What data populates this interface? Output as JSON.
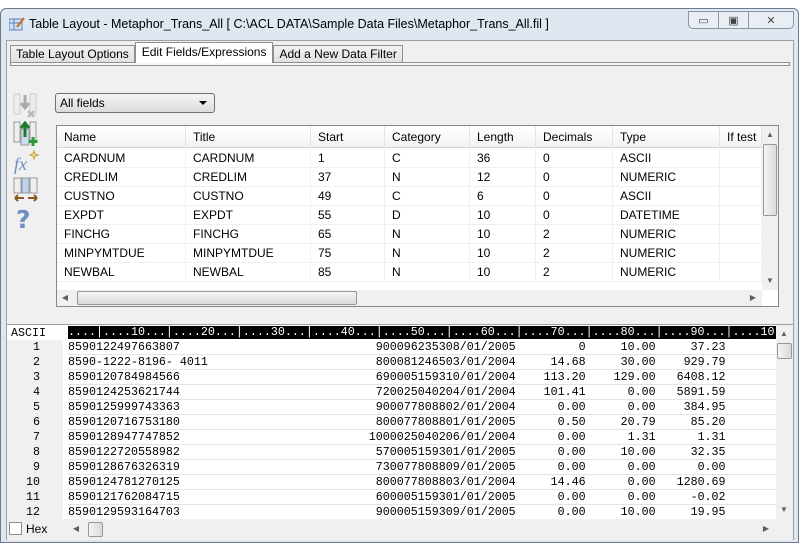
{
  "window": {
    "title": "Table Layout - Metaphor_Trans_All [ C:\\ACL DATA\\Sample Data Files\\Metaphor_Trans_All.fil ]",
    "minimize_glyph": "▭",
    "maximize_glyph": "▣",
    "close_glyph": "✕"
  },
  "tabs": [
    {
      "label": "Table Layout Options",
      "active": false
    },
    {
      "label": "Edit Fields/Expressions",
      "active": true
    },
    {
      "label": "Add a New Data Filter",
      "active": false
    }
  ],
  "toolbar": {
    "icons": [
      "delete-field-icon",
      "add-field-icon",
      "add-expression-icon",
      "resize-columns-icon",
      "help-icon"
    ]
  },
  "filter_select": {
    "value": "All fields"
  },
  "fields_grid": {
    "columns": [
      "Name",
      "Title",
      "Start",
      "Category",
      "Length",
      "Decimals",
      "Type",
      "If test"
    ],
    "rows": [
      [
        "CARDNUM",
        "CARDNUM",
        "1",
        "C",
        "36",
        "0",
        "ASCII",
        ""
      ],
      [
        "CREDLIM",
        "CREDLIM",
        "37",
        "N",
        "12",
        "0",
        "NUMERIC",
        ""
      ],
      [
        "CUSTNO",
        "CUSTNO",
        "49",
        "C",
        "6",
        "0",
        "ASCII",
        ""
      ],
      [
        "EXPDT",
        "EXPDT",
        "55",
        "D",
        "10",
        "0",
        "DATETIME",
        ""
      ],
      [
        "FINCHG",
        "FINCHG",
        "65",
        "N",
        "10",
        "2",
        "NUMERIC",
        ""
      ],
      [
        "MINPYMTDUE",
        "MINPYMTDUE",
        "75",
        "N",
        "10",
        "2",
        "NUMERIC",
        ""
      ],
      [
        "NEWBAL",
        "NEWBAL",
        "85",
        "N",
        "10",
        "2",
        "NUMERIC",
        ""
      ]
    ]
  },
  "data_view": {
    "encoding_label": "ASCII",
    "ruler": "....|....10...|....20...|....30...|....40...|....50...|....60...|....70...|....80...|....90...|....10",
    "records": [
      {
        "n": "1",
        "card": "8590122497663807",
        "mid": "900096235308/01/2005",
        "v1": "0",
        "v2": "10.00",
        "v3": "37.23"
      },
      {
        "n": "2",
        "card": "8590-1222-8196- 4011",
        "mid": "800081246503/01/2004",
        "v1": "14.68",
        "v2": "30.00",
        "v3": "929.79"
      },
      {
        "n": "3",
        "card": "8590120784984566",
        "mid": "690005159310/01/2004",
        "v1": "113.20",
        "v2": "129.00",
        "v3": "6408.12"
      },
      {
        "n": "4",
        "card": "8590124253621744",
        "mid": "720025040204/01/2004",
        "v1": "101.41",
        "v2": "0.00",
        "v3": "5891.59"
      },
      {
        "n": "5",
        "card": "8590125999743363",
        "mid": "900077808802/01/2004",
        "v1": "0.00",
        "v2": "0.00",
        "v3": "384.95"
      },
      {
        "n": "6",
        "card": "8590120716753180",
        "mid": "800077808801/01/2005",
        "v1": "0.50",
        "v2": "20.79",
        "v3": "85.20"
      },
      {
        "n": "7",
        "card": "8590128947747852",
        "mid": "1000025040206/01/2004",
        "v1": "0.00",
        "v2": "1.31",
        "v3": "1.31"
      },
      {
        "n": "8",
        "card": "8590122720558982",
        "mid": "570005159301/01/2005",
        "v1": "0.00",
        "v2": "10.00",
        "v3": "32.35"
      },
      {
        "n": "9",
        "card": "8590128676326319",
        "mid": "730077808809/01/2005",
        "v1": "0.00",
        "v2": "0.00",
        "v3": "0.00"
      },
      {
        "n": "10",
        "card": "8590124781270125",
        "mid": "800077808803/01/2004",
        "v1": "14.46",
        "v2": "0.00",
        "v3": "1280.69"
      },
      {
        "n": "11",
        "card": "8590121762084715",
        "mid": "600005159301/01/2005",
        "v1": "0.00",
        "v2": "0.00",
        "v3": "-0.02"
      },
      {
        "n": "12",
        "card": "8590129593164703",
        "mid": "900005159309/01/2005",
        "v1": "0.00",
        "v2": "10.00",
        "v3": "19.95"
      }
    ],
    "hex_label": "Hex",
    "hex_checked": false
  }
}
